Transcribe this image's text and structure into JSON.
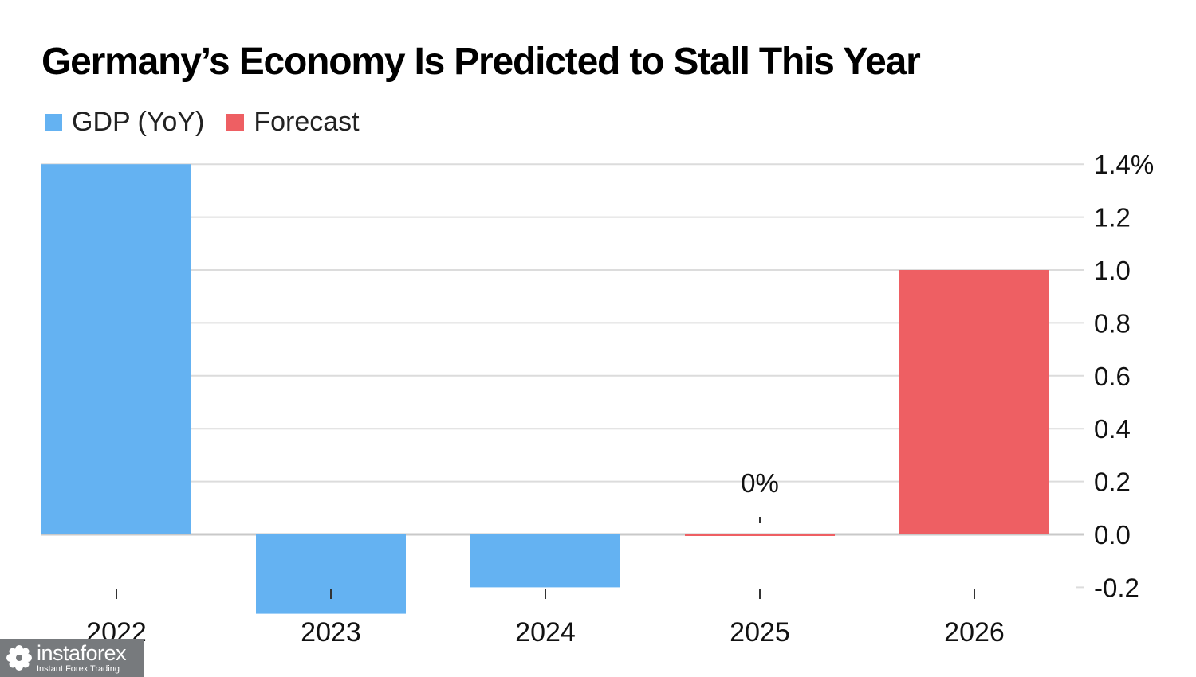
{
  "title": "Germany’s Economy Is Predicted to Stall This Year",
  "legend": [
    {
      "label": "GDP (YoY)",
      "color": "#64b2f2"
    },
    {
      "label": "Forecast",
      "color": "#ee5f63"
    }
  ],
  "chart_data": {
    "type": "bar",
    "title": "Germany’s Economy Is Predicted to Stall This Year",
    "categories": [
      "2022",
      "2023",
      "2024",
      "2025",
      "2026"
    ],
    "values": [
      1.4,
      -0.3,
      -0.2,
      0.0,
      1.0
    ],
    "bar_kind": [
      "GDP (YoY)",
      "GDP (YoY)",
      "GDP (YoY)",
      "Forecast",
      "Forecast"
    ],
    "series": [
      {
        "name": "GDP (YoY)",
        "values": [
          1.4,
          -0.3,
          -0.2,
          null,
          null
        ]
      },
      {
        "name": "Forecast",
        "values": [
          null,
          null,
          null,
          0.0,
          1.0
        ]
      }
    ],
    "ylim": [
      -0.2,
      1.4
    ],
    "yticks": [
      1.4,
      1.2,
      1.0,
      0.8,
      0.6,
      0.4,
      0.2,
      0.0,
      -0.2
    ],
    "ytick_labels": [
      "1.4%",
      "1.2",
      "1.0",
      "0.8",
      "0.6",
      "0.4",
      "0.2",
      "0.0",
      "-0.2"
    ],
    "y_axis_side": "right",
    "grid": true,
    "legend_position": "top-left",
    "annotations": [
      {
        "category": "2025",
        "text": "0%"
      }
    ],
    "xlabel": "",
    "ylabel": ""
  },
  "watermark": {
    "brand": "instaforex",
    "tagline": "Instant Forex Trading",
    "icon": "gear-flower-icon"
  }
}
